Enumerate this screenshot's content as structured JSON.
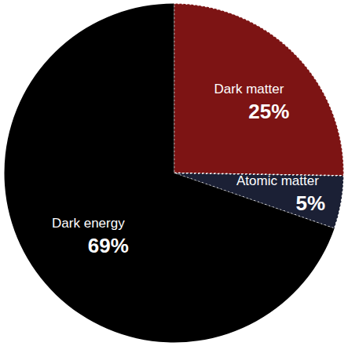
{
  "chart_data": {
    "type": "pie",
    "categories": [
      "Dark matter",
      "Atomic matter",
      "Dark energy"
    ],
    "values": [
      25,
      5,
      69
    ],
    "value_labels": [
      "25%",
      "5%",
      "69%"
    ],
    "colors": [
      "#7d1414",
      "#1b2035",
      "#000000"
    ],
    "data_labels": true
  }
}
